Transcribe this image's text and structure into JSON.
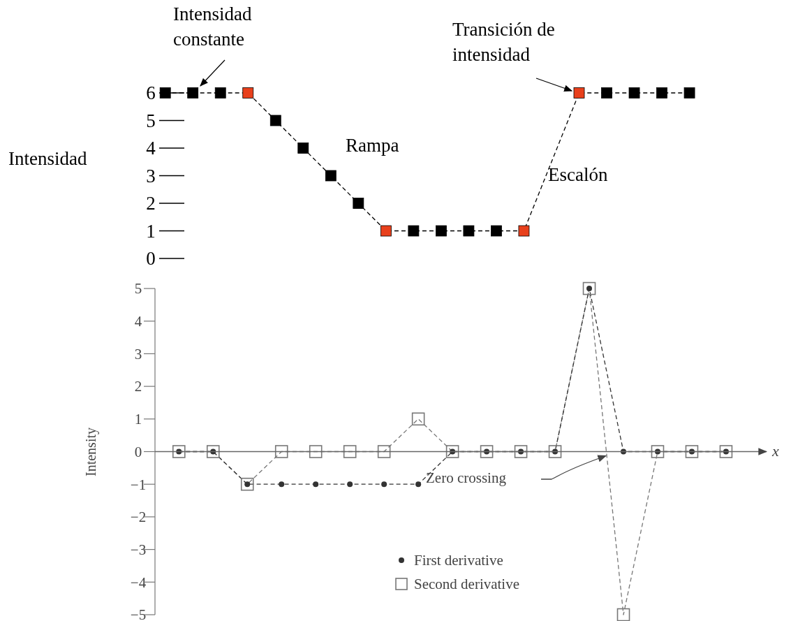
{
  "chart_data": [
    {
      "type": "line",
      "ylabel": "Intensidad",
      "annotations": [
        "Intensidad constante",
        "Rampa",
        "Escalón",
        "Transición de intensidad"
      ],
      "categories": [
        null,
        null,
        null,
        null,
        null,
        null,
        null,
        null,
        null,
        null,
        null,
        null,
        null,
        null,
        null,
        null,
        null,
        null,
        null,
        null
      ],
      "series": [
        {
          "color": "#000000",
          "values": [
            6,
            6,
            6,
            6,
            5,
            4,
            3,
            2,
            1,
            1,
            1,
            1,
            1,
            1,
            null,
            6,
            6,
            6,
            6,
            6
          ],
          "colors": [
            "#000000",
            "#000000",
            "#000000",
            "#e8401c",
            "#000000",
            "#000000",
            "#000000",
            "#000000",
            "#e8401c",
            "#000000",
            "#000000",
            "#000000",
            "#000000",
            "#e8401c",
            null,
            "#e8401c",
            "#000000",
            "#000000",
            "#000000",
            "#000000"
          ]
        }
      ],
      "marker": "square",
      "line_style": "dashed",
      "ylim": [
        0,
        6
      ],
      "yticks": [
        0,
        1,
        2,
        3,
        4,
        5,
        6
      ],
      "tick_labels": "y"
    },
    {
      "type": "line",
      "ylabel": "Intensity",
      "xlabel": "x",
      "annotations": [
        "Zero crossing"
      ],
      "categories": [
        null,
        null,
        null,
        null,
        null,
        null,
        null,
        null,
        null,
        null,
        null,
        null,
        null,
        null,
        null,
        null,
        null
      ],
      "series": [
        {
          "name": "First derivative",
          "color": "#333333",
          "marker": "circle",
          "values": [
            0,
            0,
            -1,
            -1,
            -1,
            -1,
            -1,
            -1,
            0,
            0,
            0,
            0,
            5,
            0,
            0,
            0,
            0
          ]
        },
        {
          "name": "Second derivative",
          "color": "#777777",
          "marker": "square",
          "values": [
            0,
            0,
            -1,
            0,
            0,
            0,
            0,
            1,
            0,
            0,
            0,
            0,
            5,
            -5,
            0,
            0,
            0
          ]
        }
      ],
      "line_style": "dashed",
      "legend": "bottom",
      "ylim": [
        -5,
        5
      ],
      "yticks": [
        -5,
        -4,
        -3,
        -2,
        -1,
        0,
        1,
        2,
        3,
        4,
        5
      ],
      "tick_labels": "y"
    }
  ]
}
